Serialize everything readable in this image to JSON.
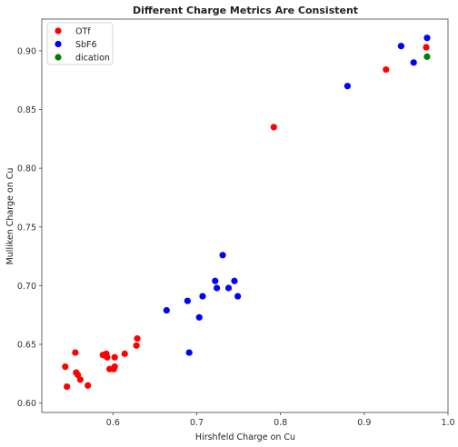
{
  "chart_data": {
    "type": "scatter",
    "title": "Different Charge Metrics Are Consistent",
    "xlabel": "Hirshfeld Charge on Cu",
    "ylabel": "Mulliken Charge on Cu",
    "xlim": [
      0.515,
      1.0
    ],
    "ylim": [
      0.592,
      0.927
    ],
    "xticks": [
      0.6,
      0.7,
      0.8,
      0.9,
      1.0
    ],
    "xtick_labels": [
      "0.6",
      "0.7",
      "0.8",
      "0.9",
      "1.0"
    ],
    "yticks": [
      0.6,
      0.65,
      0.7,
      0.75,
      0.8,
      0.85,
      0.9
    ],
    "ytick_labels": [
      "0.60",
      "0.65",
      "0.70",
      "0.75",
      "0.80",
      "0.85",
      "0.90"
    ],
    "grid": false,
    "legend_position": "top-left",
    "series": [
      {
        "name": "OTf",
        "color": "#ff0000",
        "points": [
          {
            "x": 0.543,
            "y": 0.631
          },
          {
            "x": 0.545,
            "y": 0.614
          },
          {
            "x": 0.555,
            "y": 0.643
          },
          {
            "x": 0.556,
            "y": 0.626
          },
          {
            "x": 0.558,
            "y": 0.624
          },
          {
            "x": 0.561,
            "y": 0.62
          },
          {
            "x": 0.57,
            "y": 0.615
          },
          {
            "x": 0.588,
            "y": 0.641
          },
          {
            "x": 0.592,
            "y": 0.642
          },
          {
            "x": 0.593,
            "y": 0.639
          },
          {
            "x": 0.596,
            "y": 0.629
          },
          {
            "x": 0.601,
            "y": 0.629
          },
          {
            "x": 0.602,
            "y": 0.631
          },
          {
            "x": 0.602,
            "y": 0.639
          },
          {
            "x": 0.614,
            "y": 0.642
          },
          {
            "x": 0.628,
            "y": 0.649
          },
          {
            "x": 0.629,
            "y": 0.655
          },
          {
            "x": 0.792,
            "y": 0.835
          },
          {
            "x": 0.926,
            "y": 0.884
          },
          {
            "x": 0.974,
            "y": 0.903
          }
        ]
      },
      {
        "name": "SbF6",
        "color": "#0000ff",
        "points": [
          {
            "x": 0.664,
            "y": 0.679
          },
          {
            "x": 0.689,
            "y": 0.687
          },
          {
            "x": 0.691,
            "y": 0.643
          },
          {
            "x": 0.703,
            "y": 0.673
          },
          {
            "x": 0.707,
            "y": 0.691
          },
          {
            "x": 0.722,
            "y": 0.704
          },
          {
            "x": 0.724,
            "y": 0.698
          },
          {
            "x": 0.731,
            "y": 0.726
          },
          {
            "x": 0.738,
            "y": 0.698
          },
          {
            "x": 0.745,
            "y": 0.704
          },
          {
            "x": 0.749,
            "y": 0.691
          },
          {
            "x": 0.88,
            "y": 0.87
          },
          {
            "x": 0.944,
            "y": 0.904
          },
          {
            "x": 0.959,
            "y": 0.89
          },
          {
            "x": 0.975,
            "y": 0.911
          }
        ]
      },
      {
        "name": "dication",
        "color": "#008000",
        "points": [
          {
            "x": 0.975,
            "y": 0.895
          }
        ]
      }
    ]
  }
}
